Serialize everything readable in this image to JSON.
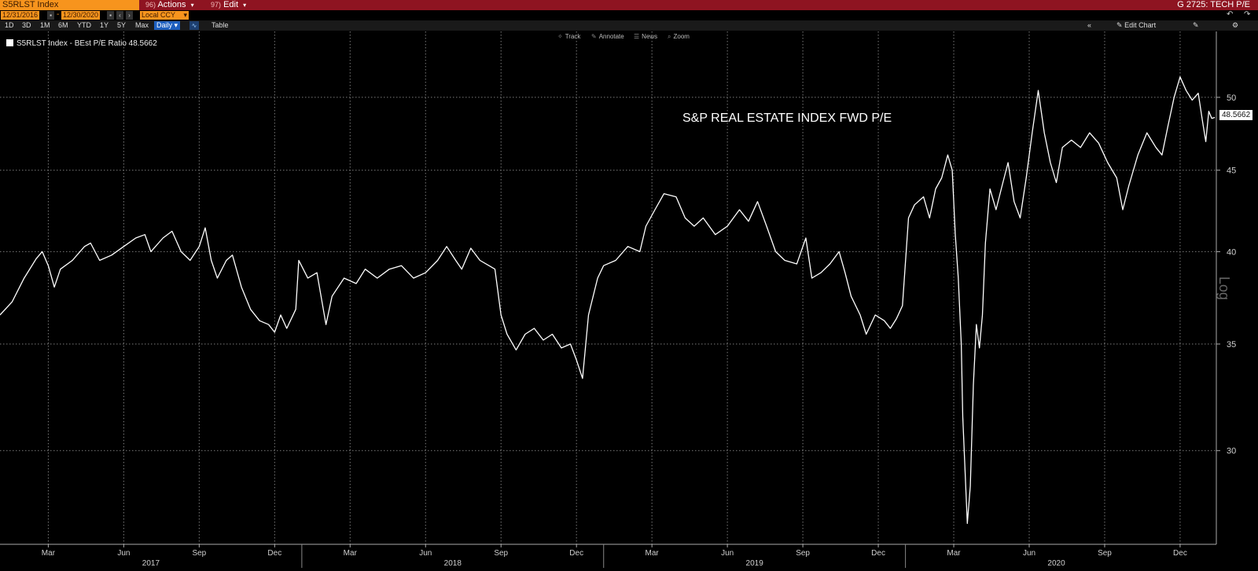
{
  "toolbar": {
    "ticker": "S5RLST Index",
    "actions_num": "96)",
    "actions_label": "Actions",
    "edit_num": "97)",
    "edit_label": "Edit",
    "page_title": "G 2725: TECH P/E"
  },
  "date_bar": {
    "start_date": "12/31/2016",
    "end_date": "12/30/2020",
    "currency": "Local CCY"
  },
  "range_bar": {
    "ranges": [
      "1D",
      "3D",
      "1M",
      "6M",
      "YTD",
      "1Y",
      "5Y",
      "Max"
    ],
    "frequency": "Daily",
    "table_label": "Table",
    "edit_chart_label": "Edit Chart"
  },
  "chart_tools": [
    "Track",
    "Annotate",
    "News",
    "Zoom"
  ],
  "legend": {
    "label": "S5RLST Index - BEst P/E Ratio 48.5662"
  },
  "colors": {
    "topbar": "#8e1421",
    "ticker_bg": "#f7941d",
    "line": "#ffffff",
    "background": "#000000",
    "daily_button": "#1d5fbf"
  },
  "chart_data": {
    "type": "line",
    "annotation": "S&P REAL ESTATE INDEX FWD P/E",
    "last_value_label": "48.5662",
    "y_scale_label": "Log",
    "yscale": "log",
    "ylim": [
      26.2,
      55.0
    ],
    "y_ticks": [
      30,
      35,
      40,
      45,
      50
    ],
    "x_month_ticks": [
      {
        "label": "Mar",
        "x": 2017.16
      },
      {
        "label": "Jun",
        "x": 2017.41
      },
      {
        "label": "Sep",
        "x": 2017.66
      },
      {
        "label": "Dec",
        "x": 2017.91
      },
      {
        "label": "Mar",
        "x": 2018.16
      },
      {
        "label": "Jun",
        "x": 2018.41
      },
      {
        "label": "Sep",
        "x": 2018.66
      },
      {
        "label": "Dec",
        "x": 2018.91
      },
      {
        "label": "Mar",
        "x": 2019.16
      },
      {
        "label": "Jun",
        "x": 2019.41
      },
      {
        "label": "Sep",
        "x": 2019.66
      },
      {
        "label": "Dec",
        "x": 2019.91
      },
      {
        "label": "Mar",
        "x": 2020.16
      },
      {
        "label": "Jun",
        "x": 2020.41
      },
      {
        "label": "Sep",
        "x": 2020.66
      },
      {
        "label": "Dec",
        "x": 2020.91
      }
    ],
    "x_year_labels": [
      {
        "label": "2017",
        "x": 2017.5
      },
      {
        "label": "2018",
        "x": 2018.5
      },
      {
        "label": "2019",
        "x": 2019.5
      },
      {
        "label": "2020",
        "x": 2020.5
      }
    ],
    "x_year_dividers": [
      2018.0,
      2019.0,
      2020.0
    ],
    "xlim": [
      2017.0,
      2021.03
    ],
    "series": [
      {
        "points": [
          [
            2017.0,
            36.5
          ],
          [
            2017.04,
            37.2
          ],
          [
            2017.08,
            38.5
          ],
          [
            2017.12,
            39.6
          ],
          [
            2017.14,
            40.0
          ],
          [
            2017.16,
            39.2
          ],
          [
            2017.18,
            38.0
          ],
          [
            2017.2,
            39.0
          ],
          [
            2017.24,
            39.5
          ],
          [
            2017.28,
            40.3
          ],
          [
            2017.3,
            40.5
          ],
          [
            2017.33,
            39.5
          ],
          [
            2017.37,
            39.8
          ],
          [
            2017.41,
            40.3
          ],
          [
            2017.45,
            40.8
          ],
          [
            2017.48,
            41.0
          ],
          [
            2017.5,
            40.0
          ],
          [
            2017.54,
            40.8
          ],
          [
            2017.57,
            41.2
          ],
          [
            2017.6,
            40.0
          ],
          [
            2017.63,
            39.5
          ],
          [
            2017.66,
            40.3
          ],
          [
            2017.68,
            41.4
          ],
          [
            2017.7,
            39.5
          ],
          [
            2017.72,
            38.5
          ],
          [
            2017.75,
            39.5
          ],
          [
            2017.77,
            39.8
          ],
          [
            2017.8,
            38.0
          ],
          [
            2017.83,
            36.8
          ],
          [
            2017.86,
            36.2
          ],
          [
            2017.89,
            36.0
          ],
          [
            2017.91,
            35.6
          ],
          [
            2017.93,
            36.5
          ],
          [
            2017.95,
            35.8
          ],
          [
            2017.98,
            36.8
          ],
          [
            2017.99,
            39.5
          ],
          [
            2018.02,
            38.5
          ],
          [
            2018.05,
            38.8
          ],
          [
            2018.08,
            36.0
          ],
          [
            2018.1,
            37.5
          ],
          [
            2018.14,
            38.5
          ],
          [
            2018.18,
            38.2
          ],
          [
            2018.21,
            39.0
          ],
          [
            2018.25,
            38.5
          ],
          [
            2018.29,
            39.0
          ],
          [
            2018.33,
            39.2
          ],
          [
            2018.37,
            38.5
          ],
          [
            2018.41,
            38.8
          ],
          [
            2018.45,
            39.5
          ],
          [
            2018.48,
            40.3
          ],
          [
            2018.51,
            39.5
          ],
          [
            2018.53,
            39.0
          ],
          [
            2018.56,
            40.2
          ],
          [
            2018.59,
            39.5
          ],
          [
            2018.62,
            39.2
          ],
          [
            2018.64,
            39.0
          ],
          [
            2018.66,
            36.5
          ],
          [
            2018.68,
            35.5
          ],
          [
            2018.71,
            34.7
          ],
          [
            2018.74,
            35.5
          ],
          [
            2018.77,
            35.8
          ],
          [
            2018.8,
            35.2
          ],
          [
            2018.83,
            35.5
          ],
          [
            2018.86,
            34.8
          ],
          [
            2018.89,
            35.0
          ],
          [
            2018.91,
            34.2
          ],
          [
            2018.93,
            33.3
          ],
          [
            2018.95,
            36.5
          ],
          [
            2018.98,
            38.5
          ],
          [
            2019.0,
            39.2
          ],
          [
            2019.04,
            39.5
          ],
          [
            2019.08,
            40.3
          ],
          [
            2019.12,
            40.0
          ],
          [
            2019.14,
            41.5
          ],
          [
            2019.17,
            42.5
          ],
          [
            2019.2,
            43.5
          ],
          [
            2019.24,
            43.3
          ],
          [
            2019.27,
            42.0
          ],
          [
            2019.3,
            41.5
          ],
          [
            2019.33,
            42.0
          ],
          [
            2019.37,
            41.0
          ],
          [
            2019.41,
            41.5
          ],
          [
            2019.45,
            42.5
          ],
          [
            2019.48,
            41.8
          ],
          [
            2019.51,
            43.0
          ],
          [
            2019.54,
            41.5
          ],
          [
            2019.57,
            40.0
          ],
          [
            2019.6,
            39.5
          ],
          [
            2019.64,
            39.3
          ],
          [
            2019.67,
            40.8
          ],
          [
            2019.69,
            38.5
          ],
          [
            2019.72,
            38.8
          ],
          [
            2019.75,
            39.3
          ],
          [
            2019.78,
            40.0
          ],
          [
            2019.8,
            38.8
          ],
          [
            2019.82,
            37.5
          ],
          [
            2019.85,
            36.5
          ],
          [
            2019.87,
            35.5
          ],
          [
            2019.9,
            36.5
          ],
          [
            2019.93,
            36.2
          ],
          [
            2019.95,
            35.8
          ],
          [
            2019.97,
            36.3
          ],
          [
            2019.99,
            37.0
          ],
          [
            2020.01,
            42.0
          ],
          [
            2020.03,
            42.8
          ],
          [
            2020.06,
            43.3
          ],
          [
            2020.08,
            42.0
          ],
          [
            2020.1,
            43.8
          ],
          [
            2020.12,
            44.5
          ],
          [
            2020.14,
            46.0
          ],
          [
            2020.155,
            45.0
          ],
          [
            2020.165,
            41.0
          ],
          [
            2020.175,
            38.5
          ],
          [
            2020.185,
            35.0
          ],
          [
            2020.19,
            31.5
          ],
          [
            2020.205,
            27.0
          ],
          [
            2020.215,
            28.5
          ],
          [
            2020.225,
            33.0
          ],
          [
            2020.235,
            36.0
          ],
          [
            2020.245,
            34.8
          ],
          [
            2020.255,
            36.5
          ],
          [
            2020.265,
            40.5
          ],
          [
            2020.28,
            43.8
          ],
          [
            2020.3,
            42.5
          ],
          [
            2020.32,
            44.0
          ],
          [
            2020.34,
            45.5
          ],
          [
            2020.36,
            43.0
          ],
          [
            2020.38,
            42.0
          ],
          [
            2020.4,
            44.5
          ],
          [
            2020.42,
            47.5
          ],
          [
            2020.44,
            50.5
          ],
          [
            2020.46,
            47.5
          ],
          [
            2020.48,
            45.5
          ],
          [
            2020.5,
            44.2
          ],
          [
            2020.52,
            46.5
          ],
          [
            2020.55,
            47.0
          ],
          [
            2020.58,
            46.5
          ],
          [
            2020.61,
            47.5
          ],
          [
            2020.64,
            46.8
          ],
          [
            2020.67,
            45.5
          ],
          [
            2020.7,
            44.5
          ],
          [
            2020.72,
            42.5
          ],
          [
            2020.74,
            44.0
          ],
          [
            2020.77,
            46.0
          ],
          [
            2020.8,
            47.5
          ],
          [
            2020.83,
            46.5
          ],
          [
            2020.85,
            46.0
          ],
          [
            2020.87,
            48.0
          ],
          [
            2020.89,
            50.0
          ],
          [
            2020.91,
            51.5
          ],
          [
            2020.93,
            50.5
          ],
          [
            2020.95,
            49.8
          ],
          [
            2020.97,
            50.3
          ],
          [
            2020.985,
            48.2
          ],
          [
            2020.995,
            46.9
          ],
          [
            2021.005,
            49.0
          ],
          [
            2021.015,
            48.5
          ],
          [
            2021.025,
            48.5662
          ]
        ]
      }
    ]
  }
}
